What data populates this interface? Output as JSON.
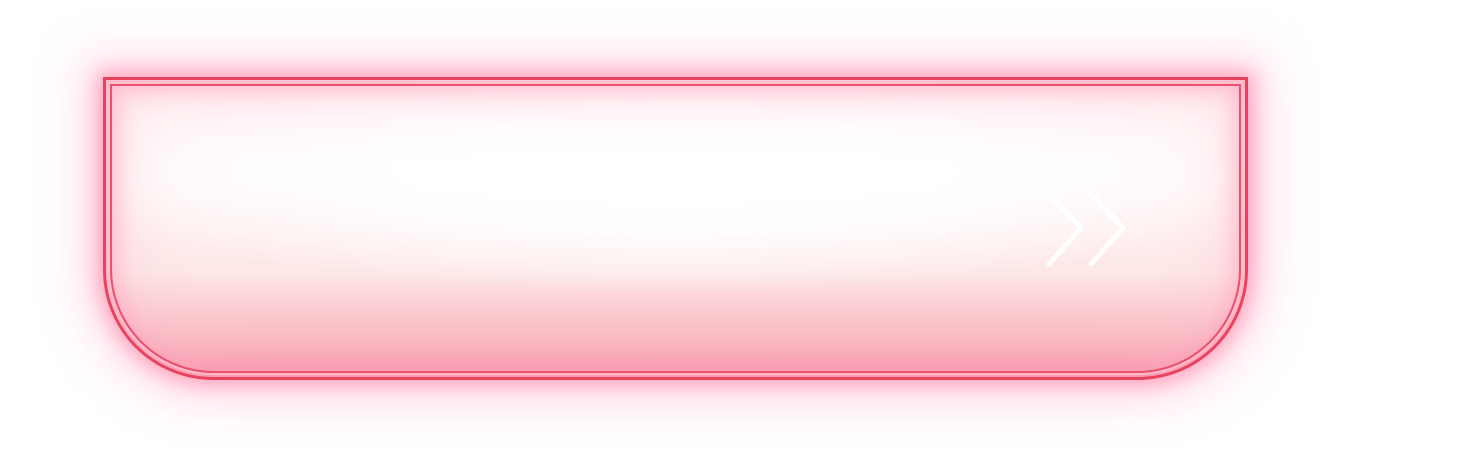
{
  "panel": {
    "label": "",
    "icon": "double-chevron-right-icon",
    "border_color": "#e8435e",
    "glow_color": "#ff7aa0",
    "fill_bottom_color": "#f48c9f"
  }
}
